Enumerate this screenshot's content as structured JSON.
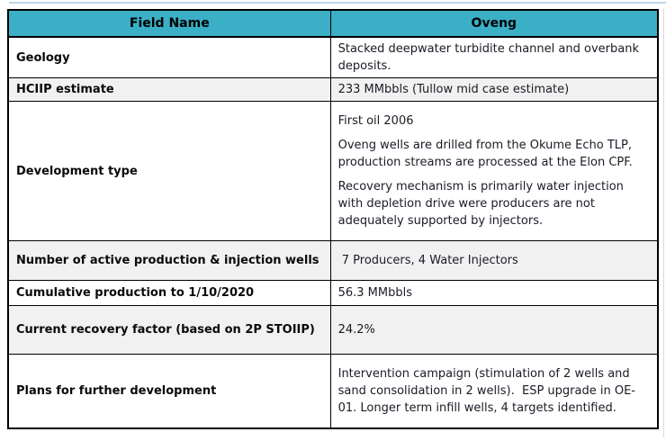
{
  "colors": {
    "header_bg": "#3AAFC5",
    "shaded_row_bg": "#F2F1F1",
    "border_color": "#000000",
    "text_color": "#1C1A25",
    "top_line_color": "#BDD8E8",
    "edge_line_color": "#D8D8D8"
  },
  "table": {
    "headers": [
      "Field Name",
      "Oveng"
    ],
    "rows": [
      {
        "label": "Geology",
        "paragraphs": [
          "Stacked deepwater turbidite channel and overbank deposits."
        ]
      },
      {
        "label": "HCIIP estimate",
        "paragraphs": [
          "233 MMbbls (Tullow mid case estimate)"
        ]
      },
      {
        "label": "Development type",
        "paragraphs": [
          "First oil 2006",
          "Oveng wells are drilled from the Okume Echo TLP, production streams are processed at the Elon CPF.",
          "Recovery mechanism is primarily water injection with depletion drive were producers are not adequately supported by injectors."
        ]
      },
      {
        "label": "Number of active production & injection wells",
        "paragraphs": [
          " 7 Producers, 4 Water Injectors"
        ]
      },
      {
        "label": "Cumulative production to 1/10/2020",
        "paragraphs": [
          "56.3 MMbbls"
        ]
      },
      {
        "label": "Current recovery factor (based on 2P STOIIP)",
        "paragraphs": [
          "24.2%"
        ]
      },
      {
        "label": "Plans for further development",
        "paragraphs": [
          "Intervention campaign (stimulation of 2 wells and sand consolidation in 2 wells).  ESP upgrade in OE-01. Longer term infill wells, 4 targets identified."
        ]
      }
    ]
  }
}
